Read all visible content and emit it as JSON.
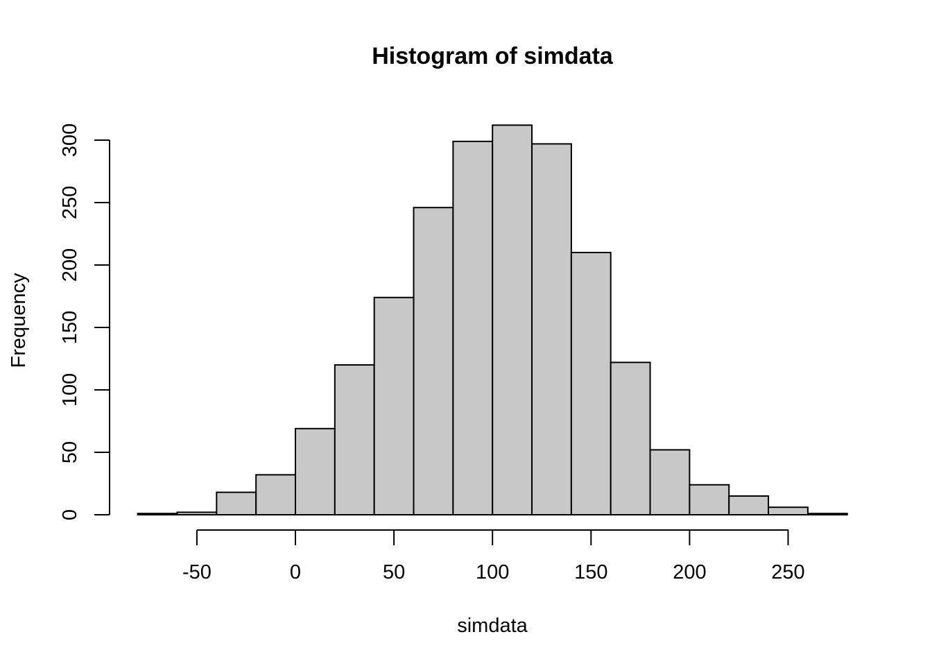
{
  "chart_data": {
    "type": "bar",
    "title": "Histogram of simdata",
    "xlabel": "simdata",
    "ylabel": "Frequency",
    "bin_edges": [
      -80,
      -60,
      -40,
      -20,
      0,
      20,
      40,
      60,
      80,
      100,
      120,
      140,
      160,
      180,
      200,
      220,
      240,
      260,
      280
    ],
    "values": [
      1,
      2,
      18,
      32,
      69,
      120,
      174,
      246,
      299,
      312,
      297,
      210,
      122,
      52,
      24,
      15,
      6,
      1
    ],
    "xlim": [
      -80,
      280
    ],
    "ylim": [
      0,
      312
    ],
    "x_ticks": [
      -50,
      0,
      50,
      100,
      150,
      200,
      250
    ],
    "y_ticks": [
      0,
      50,
      100,
      150,
      200,
      250,
      300
    ],
    "bar_color": "#c8c8c8",
    "grid": false
  }
}
